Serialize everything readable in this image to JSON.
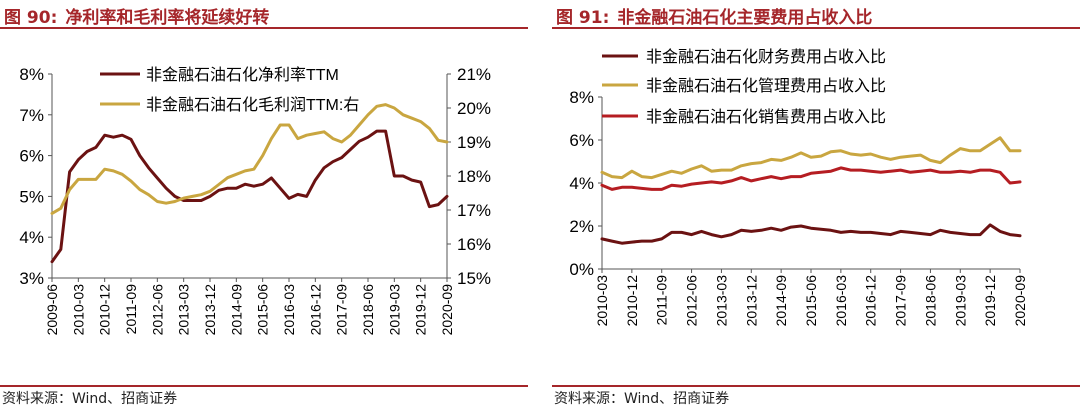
{
  "left": {
    "figure_label": "图 90:",
    "title": "净利率和毛利率将延续好转",
    "source": "资料来源：Wind、招商证券"
  },
  "right": {
    "figure_label": "图 91:",
    "title": "非金融石油石化主要费用占收入比",
    "source": "资料来源：Wind、招商证券"
  },
  "colors": {
    "title_red": "#a5262a",
    "dark_red": "#6b1212",
    "gold": "#c9a640",
    "red": "#b51d22"
  },
  "chart_data": [
    {
      "type": "line",
      "x_tick_labels": [
        "2009-06",
        "2010-03",
        "2010-12",
        "2011-09",
        "2012-06",
        "2013-03",
        "2013-12",
        "2014-09",
        "2015-06",
        "2016-03",
        "2016-12",
        "2017-09",
        "2018-06",
        "2019-03",
        "2019-12",
        "2020-09"
      ],
      "x_range": [
        0,
        45
      ],
      "y_left": {
        "min": 3,
        "max": 8,
        "ticks": [
          3,
          4,
          5,
          6,
          7,
          8
        ],
        "tick_labels": [
          "3%",
          "4%",
          "5%",
          "6%",
          "7%",
          "8%"
        ]
      },
      "y_right": {
        "min": 15,
        "max": 21,
        "ticks": [
          15,
          16,
          17,
          18,
          19,
          20,
          21
        ],
        "tick_labels": [
          "15%",
          "16%",
          "17%",
          "18%",
          "19%",
          "20%",
          "21%"
        ]
      },
      "series": [
        {
          "name": "非金融石油石化净利率TTM",
          "axis": "left",
          "color": "#6b1212",
          "values": [
            3.4,
            3.7,
            5.6,
            5.9,
            6.1,
            6.2,
            6.5,
            6.45,
            6.5,
            6.4,
            6.0,
            5.7,
            5.45,
            5.2,
            5.0,
            4.9,
            4.9,
            4.9,
            5.0,
            5.15,
            5.2,
            5.2,
            5.3,
            5.25,
            5.3,
            5.45,
            5.2,
            4.95,
            5.05,
            5.0,
            5.4,
            5.7,
            5.85,
            5.95,
            6.15,
            6.35,
            6.45,
            6.6,
            6.6,
            5.5,
            5.5,
            5.4,
            5.35,
            4.75,
            4.8,
            5.0
          ]
        },
        {
          "name": "非金融石油石化毛利润TTM:右",
          "axis": "right",
          "color": "#c9a640",
          "values": [
            16.9,
            17.05,
            17.6,
            17.9,
            17.9,
            17.9,
            18.2,
            18.15,
            18.05,
            17.85,
            17.6,
            17.45,
            17.25,
            17.2,
            17.25,
            17.35,
            17.4,
            17.45,
            17.55,
            17.75,
            17.95,
            18.05,
            18.15,
            18.2,
            18.6,
            19.1,
            19.5,
            19.5,
            19.1,
            19.2,
            19.25,
            19.3,
            19.1,
            19.0,
            19.2,
            19.5,
            19.8,
            20.05,
            20.1,
            20.0,
            19.8,
            19.7,
            19.6,
            19.4,
            19.05,
            19.0
          ]
        }
      ]
    },
    {
      "type": "line",
      "x_tick_labels": [
        "2010-03",
        "2010-12",
        "2011-09",
        "2012-06",
        "2013-03",
        "2013-12",
        "2014-09",
        "2015-06",
        "2016-03",
        "2016-12",
        "2017-09",
        "2018-06",
        "2019-03",
        "2019-12",
        "2020-09"
      ],
      "x_range": [
        0,
        42
      ],
      "y": {
        "min": 0,
        "max": 8,
        "ticks": [
          0,
          2,
          4,
          6,
          8
        ],
        "tick_labels": [
          "0%",
          "2%",
          "4%",
          "6%",
          "8%"
        ]
      },
      "series": [
        {
          "name": "非金融石油石化财务费用占收入比",
          "color": "#6b1212",
          "values": [
            1.4,
            1.3,
            1.2,
            1.25,
            1.3,
            1.3,
            1.4,
            1.7,
            1.7,
            1.6,
            1.75,
            1.6,
            1.5,
            1.6,
            1.8,
            1.75,
            1.8,
            1.9,
            1.8,
            1.95,
            2.0,
            1.9,
            1.85,
            1.8,
            1.7,
            1.75,
            1.7,
            1.7,
            1.65,
            1.6,
            1.75,
            1.7,
            1.65,
            1.6,
            1.8,
            1.7,
            1.65,
            1.6,
            1.6,
            2.05,
            1.75,
            1.6,
            1.55
          ]
        },
        {
          "name": "非金融石油石化管理费用占收入比",
          "color": "#c9a640",
          "values": [
            4.5,
            4.3,
            4.25,
            4.55,
            4.3,
            4.25,
            4.4,
            4.55,
            4.45,
            4.65,
            4.8,
            4.55,
            4.6,
            4.6,
            4.8,
            4.9,
            4.95,
            5.1,
            5.05,
            5.2,
            5.4,
            5.2,
            5.25,
            5.45,
            5.5,
            5.35,
            5.3,
            5.35,
            5.2,
            5.1,
            5.2,
            5.25,
            5.3,
            5.05,
            4.95,
            5.3,
            5.6,
            5.5,
            5.5,
            5.8,
            6.1,
            5.5,
            5.5
          ]
        },
        {
          "name": "非金融石油石化销售费用占收入比",
          "color": "#b51d22",
          "values": [
            3.9,
            3.7,
            3.8,
            3.8,
            3.75,
            3.7,
            3.7,
            3.9,
            3.85,
            3.95,
            4.0,
            4.05,
            4.0,
            4.1,
            4.25,
            4.1,
            4.2,
            4.3,
            4.2,
            4.3,
            4.3,
            4.45,
            4.5,
            4.55,
            4.7,
            4.6,
            4.6,
            4.55,
            4.5,
            4.55,
            4.6,
            4.5,
            4.55,
            4.6,
            4.5,
            4.5,
            4.55,
            4.5,
            4.6,
            4.6,
            4.5,
            4.0,
            4.05
          ]
        }
      ]
    }
  ]
}
